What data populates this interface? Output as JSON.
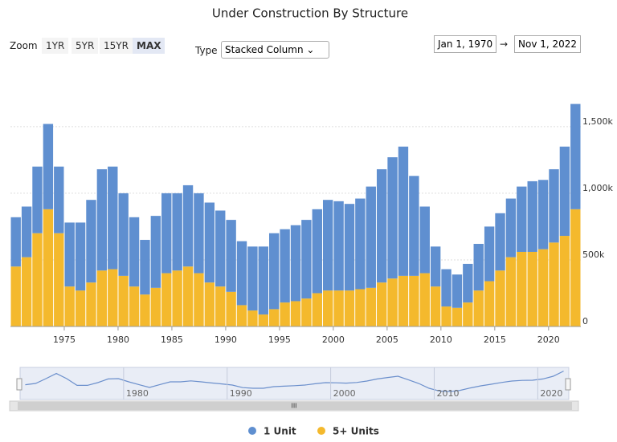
{
  "ui": {
    "zoom_label": "Zoom",
    "zoom_buttons": [
      "1YR",
      "5YR",
      "15YR",
      "MAX"
    ],
    "type_label": "Type",
    "type_select": "Stacked Column ⌄",
    "date_from": "Jan 1, 1970",
    "date_arrow": "→",
    "date_to": "Nov 1, 2022",
    "scrollbar_grip": "III"
  },
  "chart_data": {
    "type": "stacked-bar",
    "title": "Under Construction By Structure",
    "x": [
      1970,
      1971,
      1972,
      1973,
      1974,
      1975,
      1976,
      1977,
      1978,
      1979,
      1980,
      1981,
      1982,
      1983,
      1984,
      1985,
      1986,
      1987,
      1988,
      1989,
      1990,
      1991,
      1992,
      1993,
      1994,
      1995,
      1996,
      1997,
      1998,
      1999,
      2000,
      2001,
      2002,
      2003,
      2004,
      2005,
      2006,
      2007,
      2008,
      2009,
      2010,
      2011,
      2012,
      2013,
      2014,
      2015,
      2016,
      2017,
      2018,
      2019,
      2020,
      2021,
      2022
    ],
    "series": [
      {
        "name": "1 Unit",
        "color": "#5f8fd0",
        "values": [
          370000,
          380000,
          500000,
          640000,
          500000,
          480000,
          510000,
          620000,
          760000,
          770000,
          620000,
          520000,
          410000,
          540000,
          600000,
          580000,
          610000,
          600000,
          600000,
          570000,
          540000,
          480000,
          480000,
          510000,
          570000,
          550000,
          570000,
          590000,
          630000,
          680000,
          670000,
          650000,
          680000,
          760000,
          850000,
          910000,
          970000,
          750000,
          500000,
          300000,
          280000,
          250000,
          290000,
          350000,
          410000,
          430000,
          440000,
          490000,
          530000,
          520000,
          550000,
          670000,
          790000
        ]
      },
      {
        "name": "5+ Units",
        "color": "#f4b92d",
        "values": [
          450000,
          520000,
          700000,
          880000,
          700000,
          300000,
          270000,
          330000,
          420000,
          430000,
          380000,
          300000,
          240000,
          290000,
          400000,
          420000,
          450000,
          400000,
          330000,
          300000,
          260000,
          160000,
          120000,
          90000,
          130000,
          180000,
          190000,
          210000,
          250000,
          270000,
          270000,
          270000,
          280000,
          290000,
          330000,
          360000,
          380000,
          380000,
          400000,
          300000,
          150000,
          140000,
          180000,
          270000,
          340000,
          420000,
          520000,
          560000,
          560000,
          580000,
          630000,
          680000,
          880000
        ]
      }
    ],
    "xlim": [
      1970,
      2023
    ],
    "xticks": [
      1975,
      1980,
      1985,
      1990,
      1995,
      2000,
      2005,
      2010,
      2015,
      2020
    ],
    "ylim": [
      0,
      1800000
    ],
    "yticks": [
      0,
      {
        "value": 500000,
        "label": "500k"
      },
      {
        "value": 1000000,
        "label": "1,000k"
      },
      {
        "value": 1500000,
        "label": "1,500k"
      }
    ],
    "grid": true,
    "legend": "bottom",
    "navigator_ticks": [
      1980,
      1990,
      2000,
      2010,
      2020
    ]
  }
}
